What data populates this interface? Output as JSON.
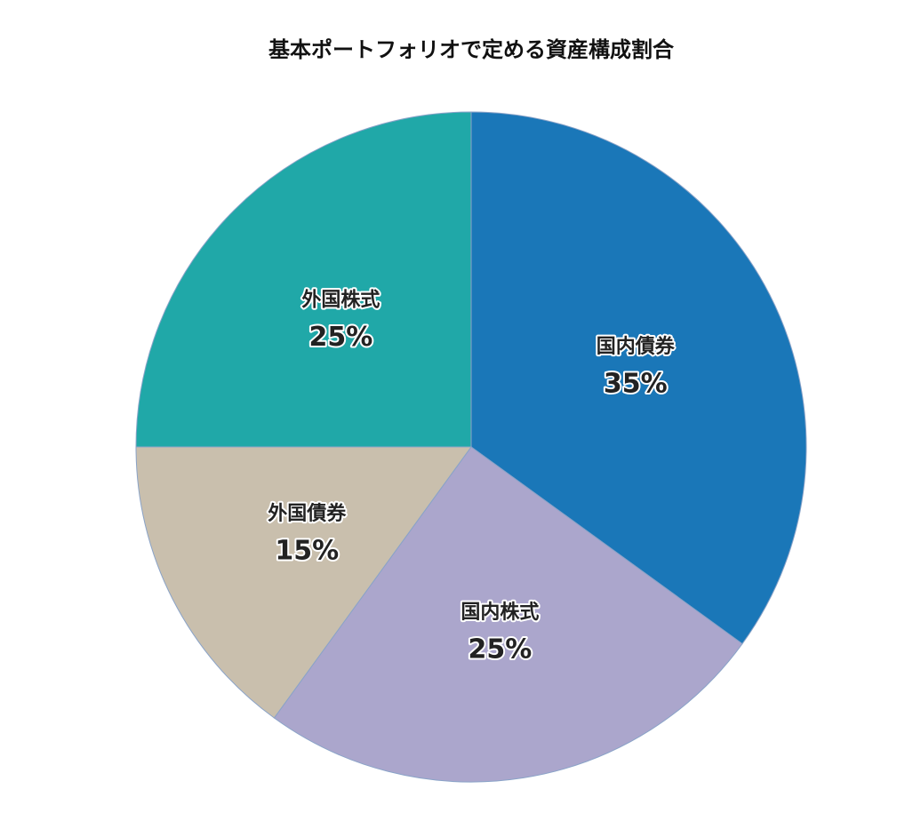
{
  "chart_data": {
    "type": "pie",
    "title": "基本ポートフォリオで定める資産構成割合",
    "categories": [
      "国内債券",
      "国内株式",
      "外国債券",
      "外国株式"
    ],
    "values": [
      35,
      25,
      15,
      25
    ],
    "value_labels": [
      "35%",
      "25%",
      "15%",
      "25%"
    ],
    "colors": [
      "#1a77b8",
      "#aba6cc",
      "#c9bfad",
      "#20a8a8"
    ]
  }
}
